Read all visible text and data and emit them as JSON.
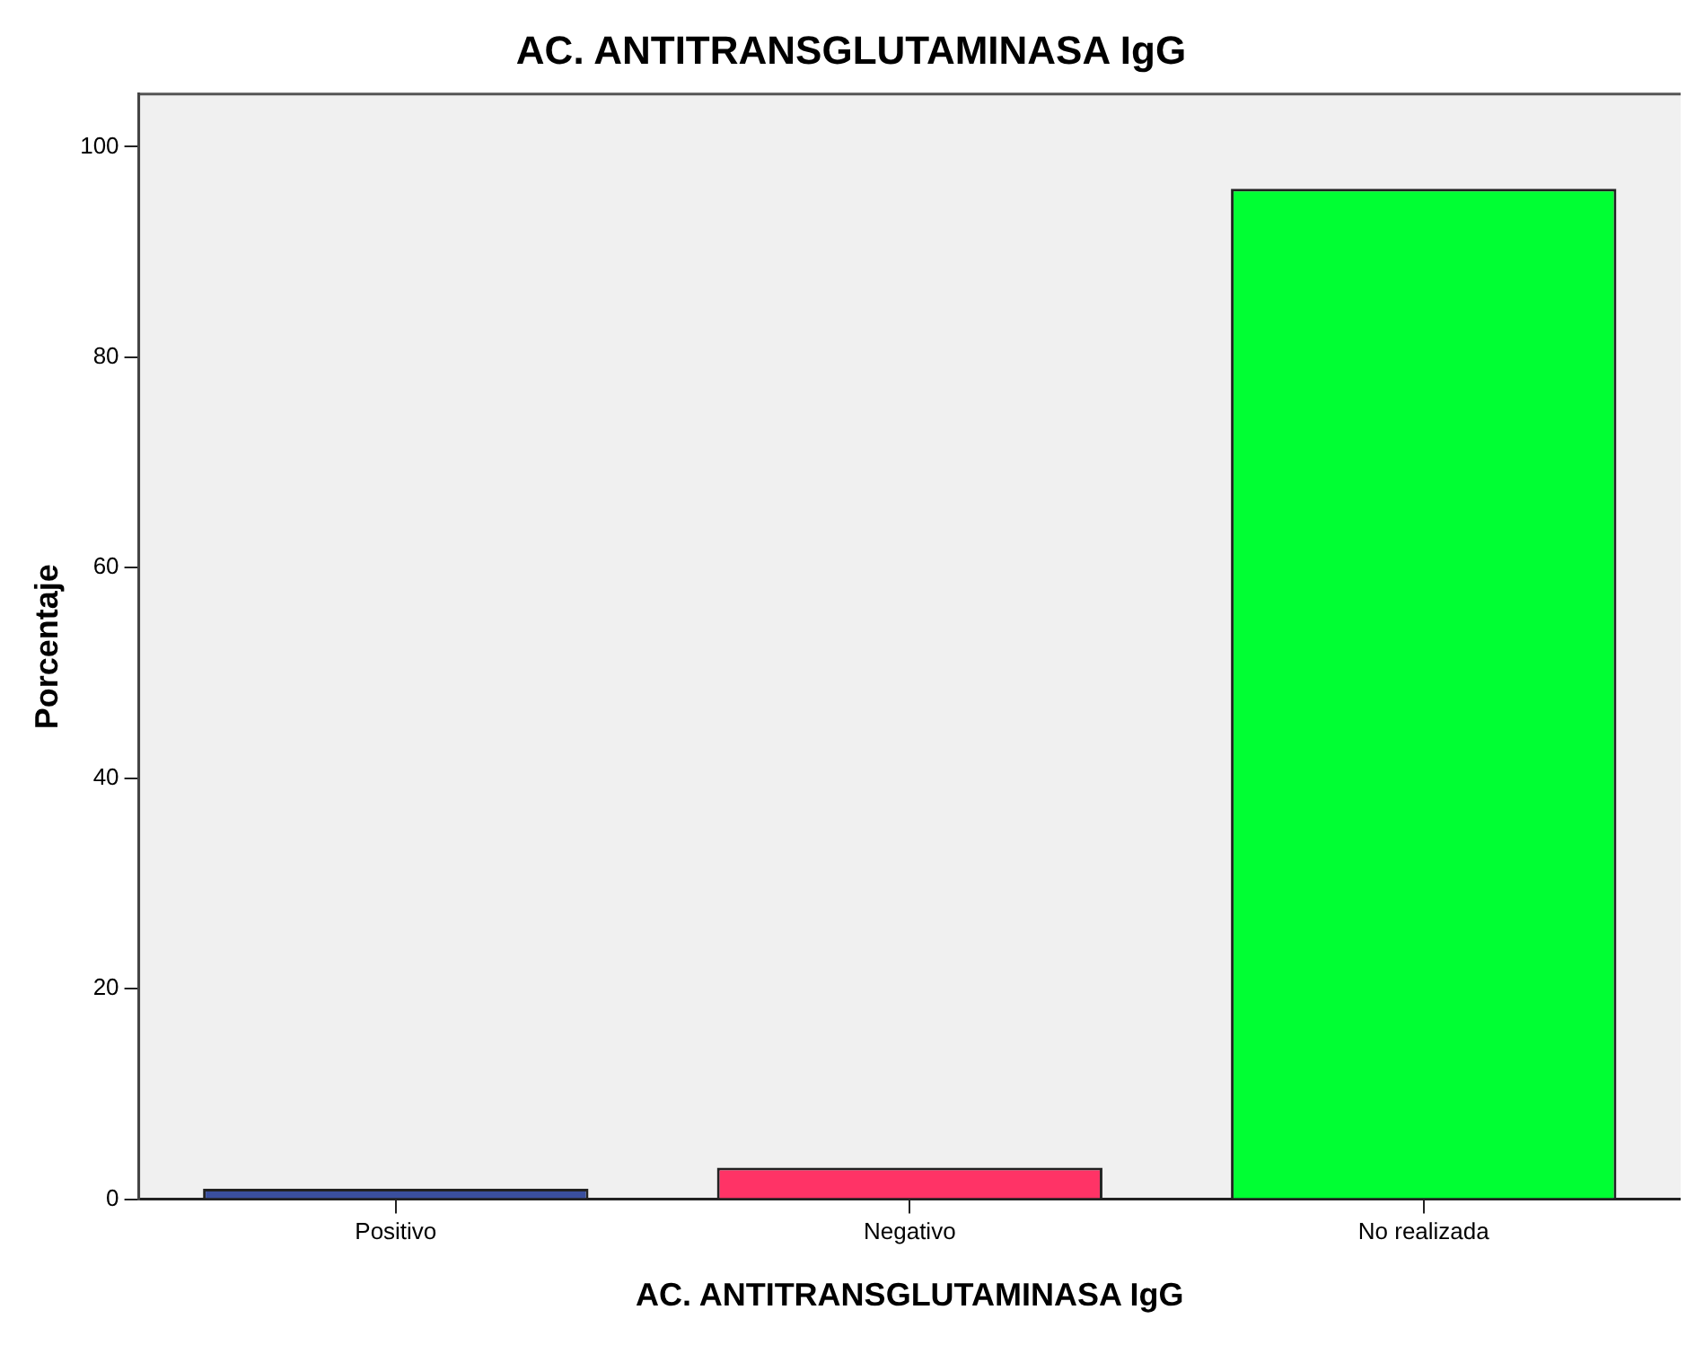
{
  "chart_data": {
    "type": "bar",
    "title": "AC. ANTITRANSGLUTAMINASA IgG",
    "xlabel": "AC. ANTITRANSGLUTAMINASA IgG",
    "ylabel": "Porcentaje",
    "categories": [
      "Positivo",
      "Negativo",
      "No realizada"
    ],
    "values": [
      1,
      3,
      96
    ],
    "colors": [
      "#3a4f9e",
      "#ff3366",
      "#00ff33"
    ],
    "ylim": [
      0,
      105
    ],
    "yticks": [
      0,
      20,
      40,
      60,
      80,
      100
    ],
    "grid": false,
    "legend": false
  }
}
